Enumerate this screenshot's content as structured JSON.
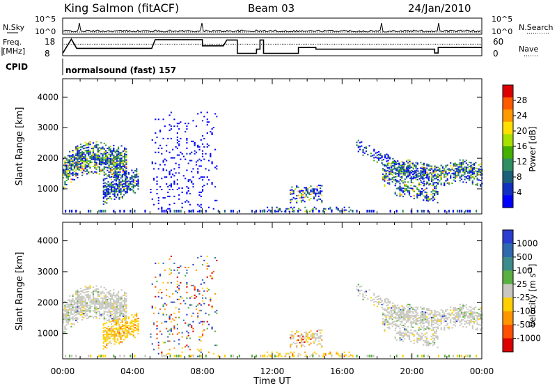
{
  "header": {
    "station": "King Salmon (fitACF)",
    "beam": "Beam 03",
    "date": "24/Jan/2010"
  },
  "top_panels": {
    "nsky_label": "N.Sky",
    "nsearch_label": "N.Search",
    "freq_label_1": "Freq.",
    "freq_label_2": "[MHz]",
    "nave_label": "Nave",
    "cpid_label": "CPID",
    "cpid_text": "normalsound (fast) 157",
    "noise_ticks_left": [
      "10^5",
      "10^0"
    ],
    "noise_ticks_right": [
      "10^5",
      "10^0"
    ],
    "freq_ticks": [
      "18",
      "8"
    ],
    "nave_ticks": [
      "60",
      "0"
    ]
  },
  "power_colorbar": {
    "label": "Power [dB]",
    "ticks": [
      "28",
      "24",
      "20",
      "16",
      "12",
      "8",
      "4"
    ],
    "colors": [
      "#dd0000",
      "#ff5a00",
      "#ff9a00",
      "#ffe000",
      "#a8e000",
      "#44b000",
      "#2f8f62",
      "#1c5f78",
      "#1030c0",
      "#0000ff"
    ]
  },
  "velocity_colorbar": {
    "label": "Velocity [m s",
    "label_sup": "-1",
    "label_end": "]",
    "ticks": [
      "1000",
      "500",
      "100",
      "25",
      "-25",
      "-100",
      "-500",
      "-1000"
    ],
    "colors": [
      "#2b3cd0",
      "#2f6ab0",
      "#3d8c8c",
      "#5ab040",
      "#c8c8c0",
      "#ffd000",
      "#ff9600",
      "#ff5000",
      "#dd0000"
    ]
  },
  "chart_data": [
    {
      "type": "heatmap",
      "title": "Power",
      "xlabel": "Time UT",
      "ylabel": "Slant Range [km]",
      "xlim": [
        0,
        24
      ],
      "ylim": [
        180,
        4600
      ],
      "x_ticks": [
        "00:00",
        "04:00",
        "08:00",
        "12:00",
        "16:00",
        "20:00",
        "00:00"
      ],
      "y_ticks": [
        "1000",
        "2000",
        "3000",
        "4000"
      ],
      "regions": [
        {
          "t0": 0.0,
          "t1": 3.6,
          "r0": 900,
          "r1": 2200,
          "level": "mixed"
        },
        {
          "t0": 2.2,
          "t1": 4.3,
          "r0": 500,
          "r1": 1500,
          "level": "mixed"
        },
        {
          "t0": 5.0,
          "t1": 8.8,
          "r0": 200,
          "r1": 3500,
          "level": "sparse"
        },
        {
          "t0": 13.0,
          "t1": 14.8,
          "r0": 200,
          "r1": 1200,
          "level": "mixed"
        },
        {
          "t0": 16.5,
          "t1": 24.0,
          "r0": 600,
          "r1": 2400,
          "level": "mixed"
        }
      ]
    },
    {
      "type": "heatmap",
      "title": "Velocity",
      "xlabel": "Time UT",
      "ylabel": "Slant Range [km]",
      "xlim": [
        0,
        24
      ],
      "ylim": [
        180,
        4600
      ],
      "x_ticks": [
        "00:00",
        "04:00",
        "08:00",
        "12:00",
        "16:00",
        "20:00",
        "00:00"
      ],
      "y_ticks": [
        "1000",
        "2000",
        "3000",
        "4000"
      ],
      "regions": [
        {
          "t0": 0.0,
          "t1": 3.6,
          "r0": 900,
          "r1": 2200,
          "velocity": "near zero"
        },
        {
          "t0": 2.2,
          "t1": 4.3,
          "r0": 200,
          "r1": 1400,
          "velocity": "-100"
        },
        {
          "t0": 5.0,
          "t1": 8.8,
          "r0": 200,
          "r1": 3500,
          "velocity": "mixed"
        },
        {
          "t0": 11.5,
          "t1": 16.0,
          "r0": 200,
          "r1": 600,
          "velocity": "-100"
        },
        {
          "t0": 16.5,
          "t1": 24.0,
          "r0": 600,
          "r1": 2400,
          "velocity": "near zero"
        }
      ]
    }
  ]
}
